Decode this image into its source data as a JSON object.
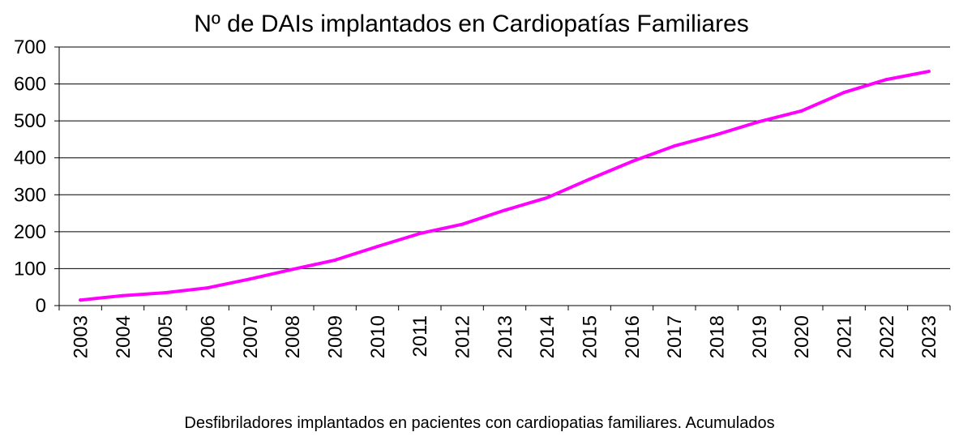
{
  "chart_data": {
    "type": "line",
    "title": "Nº de DAIs implantados en Cardiopatías Familiares",
    "subtitle": "Desfibriladores implantados en pacientes con cardiopatias familiares. Acumulados",
    "xlabel": "",
    "ylabel": "",
    "x": [
      "2003",
      "2004",
      "2005",
      "2006",
      "2007",
      "2008",
      "2009",
      "2010",
      "2011",
      "2012",
      "2013",
      "2014",
      "2015",
      "2016",
      "2017",
      "2018",
      "2019",
      "2020",
      "2021",
      "2022",
      "2023"
    ],
    "series": [
      {
        "values": [
          15,
          27,
          35,
          48,
          72,
          98,
          123,
          160,
          195,
          220,
          258,
          292,
          342,
          390,
          432,
          463,
          498,
          527,
          577,
          612,
          634
        ]
      }
    ],
    "ylim": [
      0,
      700
    ],
    "yticks": [
      0,
      100,
      200,
      300,
      400,
      500,
      600,
      700
    ],
    "grid": true,
    "legend": "none",
    "line_color": "#ff00ff"
  }
}
